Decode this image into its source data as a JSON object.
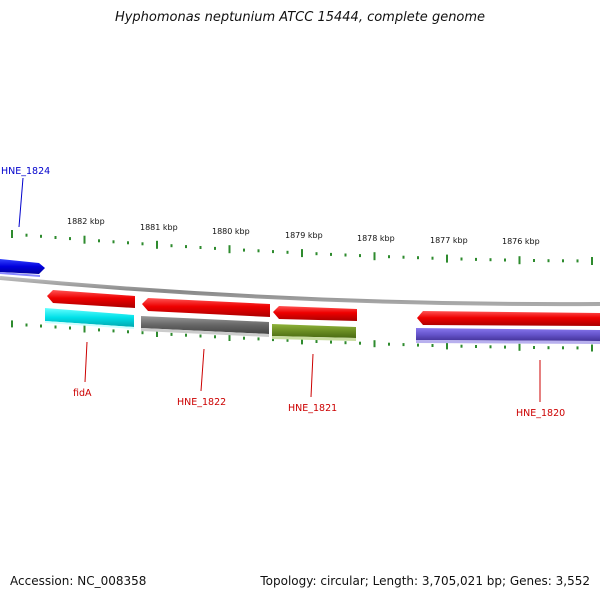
{
  "title": "Hyphomonas neptunium ATCC 15444, complete genome",
  "footer": {
    "accession": "Accession: NC_008358",
    "summary": "Topology: circular; Length: 3,705,021 bp; Genes: 3,552"
  },
  "ruler_labels": [
    "1882 kbp",
    "1881 kbp",
    "1880 kbp",
    "1879 kbp",
    "1878 kbp",
    "1877 kbp",
    "1876 kbp"
  ],
  "gene_labels": {
    "hne1824": "HNE_1824",
    "fida": "fidA",
    "hne1822": "HNE_1822",
    "hne1821": "HNE_1821",
    "hne1820": "HNE_1820"
  },
  "colors": {
    "gene_arrow": "#ee0000",
    "hne1824_arrow": "#0000dd",
    "fida_feature": "#00e0e8",
    "hne1822_feature": "#666666",
    "hne1821_feature": "#6b8e23",
    "hne1820_feature": "#6655cc",
    "ruler_ticks": "#2e8b2e",
    "label_red": "#cc0000",
    "label_blue": "#0000cc",
    "backbone": "#888888"
  }
}
